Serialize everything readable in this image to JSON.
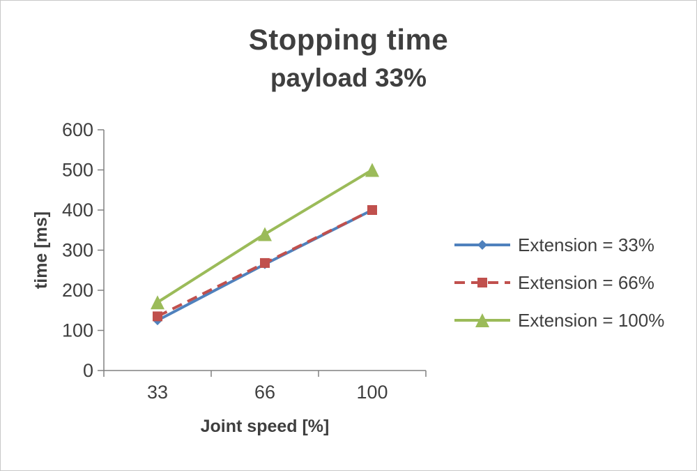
{
  "chart_data": {
    "type": "line",
    "title": "Stopping time",
    "subtitle": "payload 33%",
    "categories": [
      "33",
      "66",
      "100"
    ],
    "series": [
      {
        "name": "Extension = 33%",
        "values": [
          125,
          265,
          400
        ],
        "color": "#4f81bd",
        "marker": "diamond",
        "dash": null
      },
      {
        "name": "Extension = 66%",
        "values": [
          135,
          268,
          400
        ],
        "color": "#c0504d",
        "marker": "square",
        "dash": "15 9"
      },
      {
        "name": "Extension = 100%",
        "values": [
          170,
          340,
          500
        ],
        "color": "#9bbb59",
        "marker": "triangle",
        "dash": null
      }
    ],
    "xlabel": "Joint speed [%]",
    "ylabel": "time [ms]",
    "ylim": [
      0,
      600
    ],
    "yticks": [
      0,
      100,
      200,
      300,
      400,
      500,
      600
    ],
    "grid": false,
    "legend_position": "right"
  },
  "text_color": "#3f3f3f",
  "axis_color": "#808080"
}
